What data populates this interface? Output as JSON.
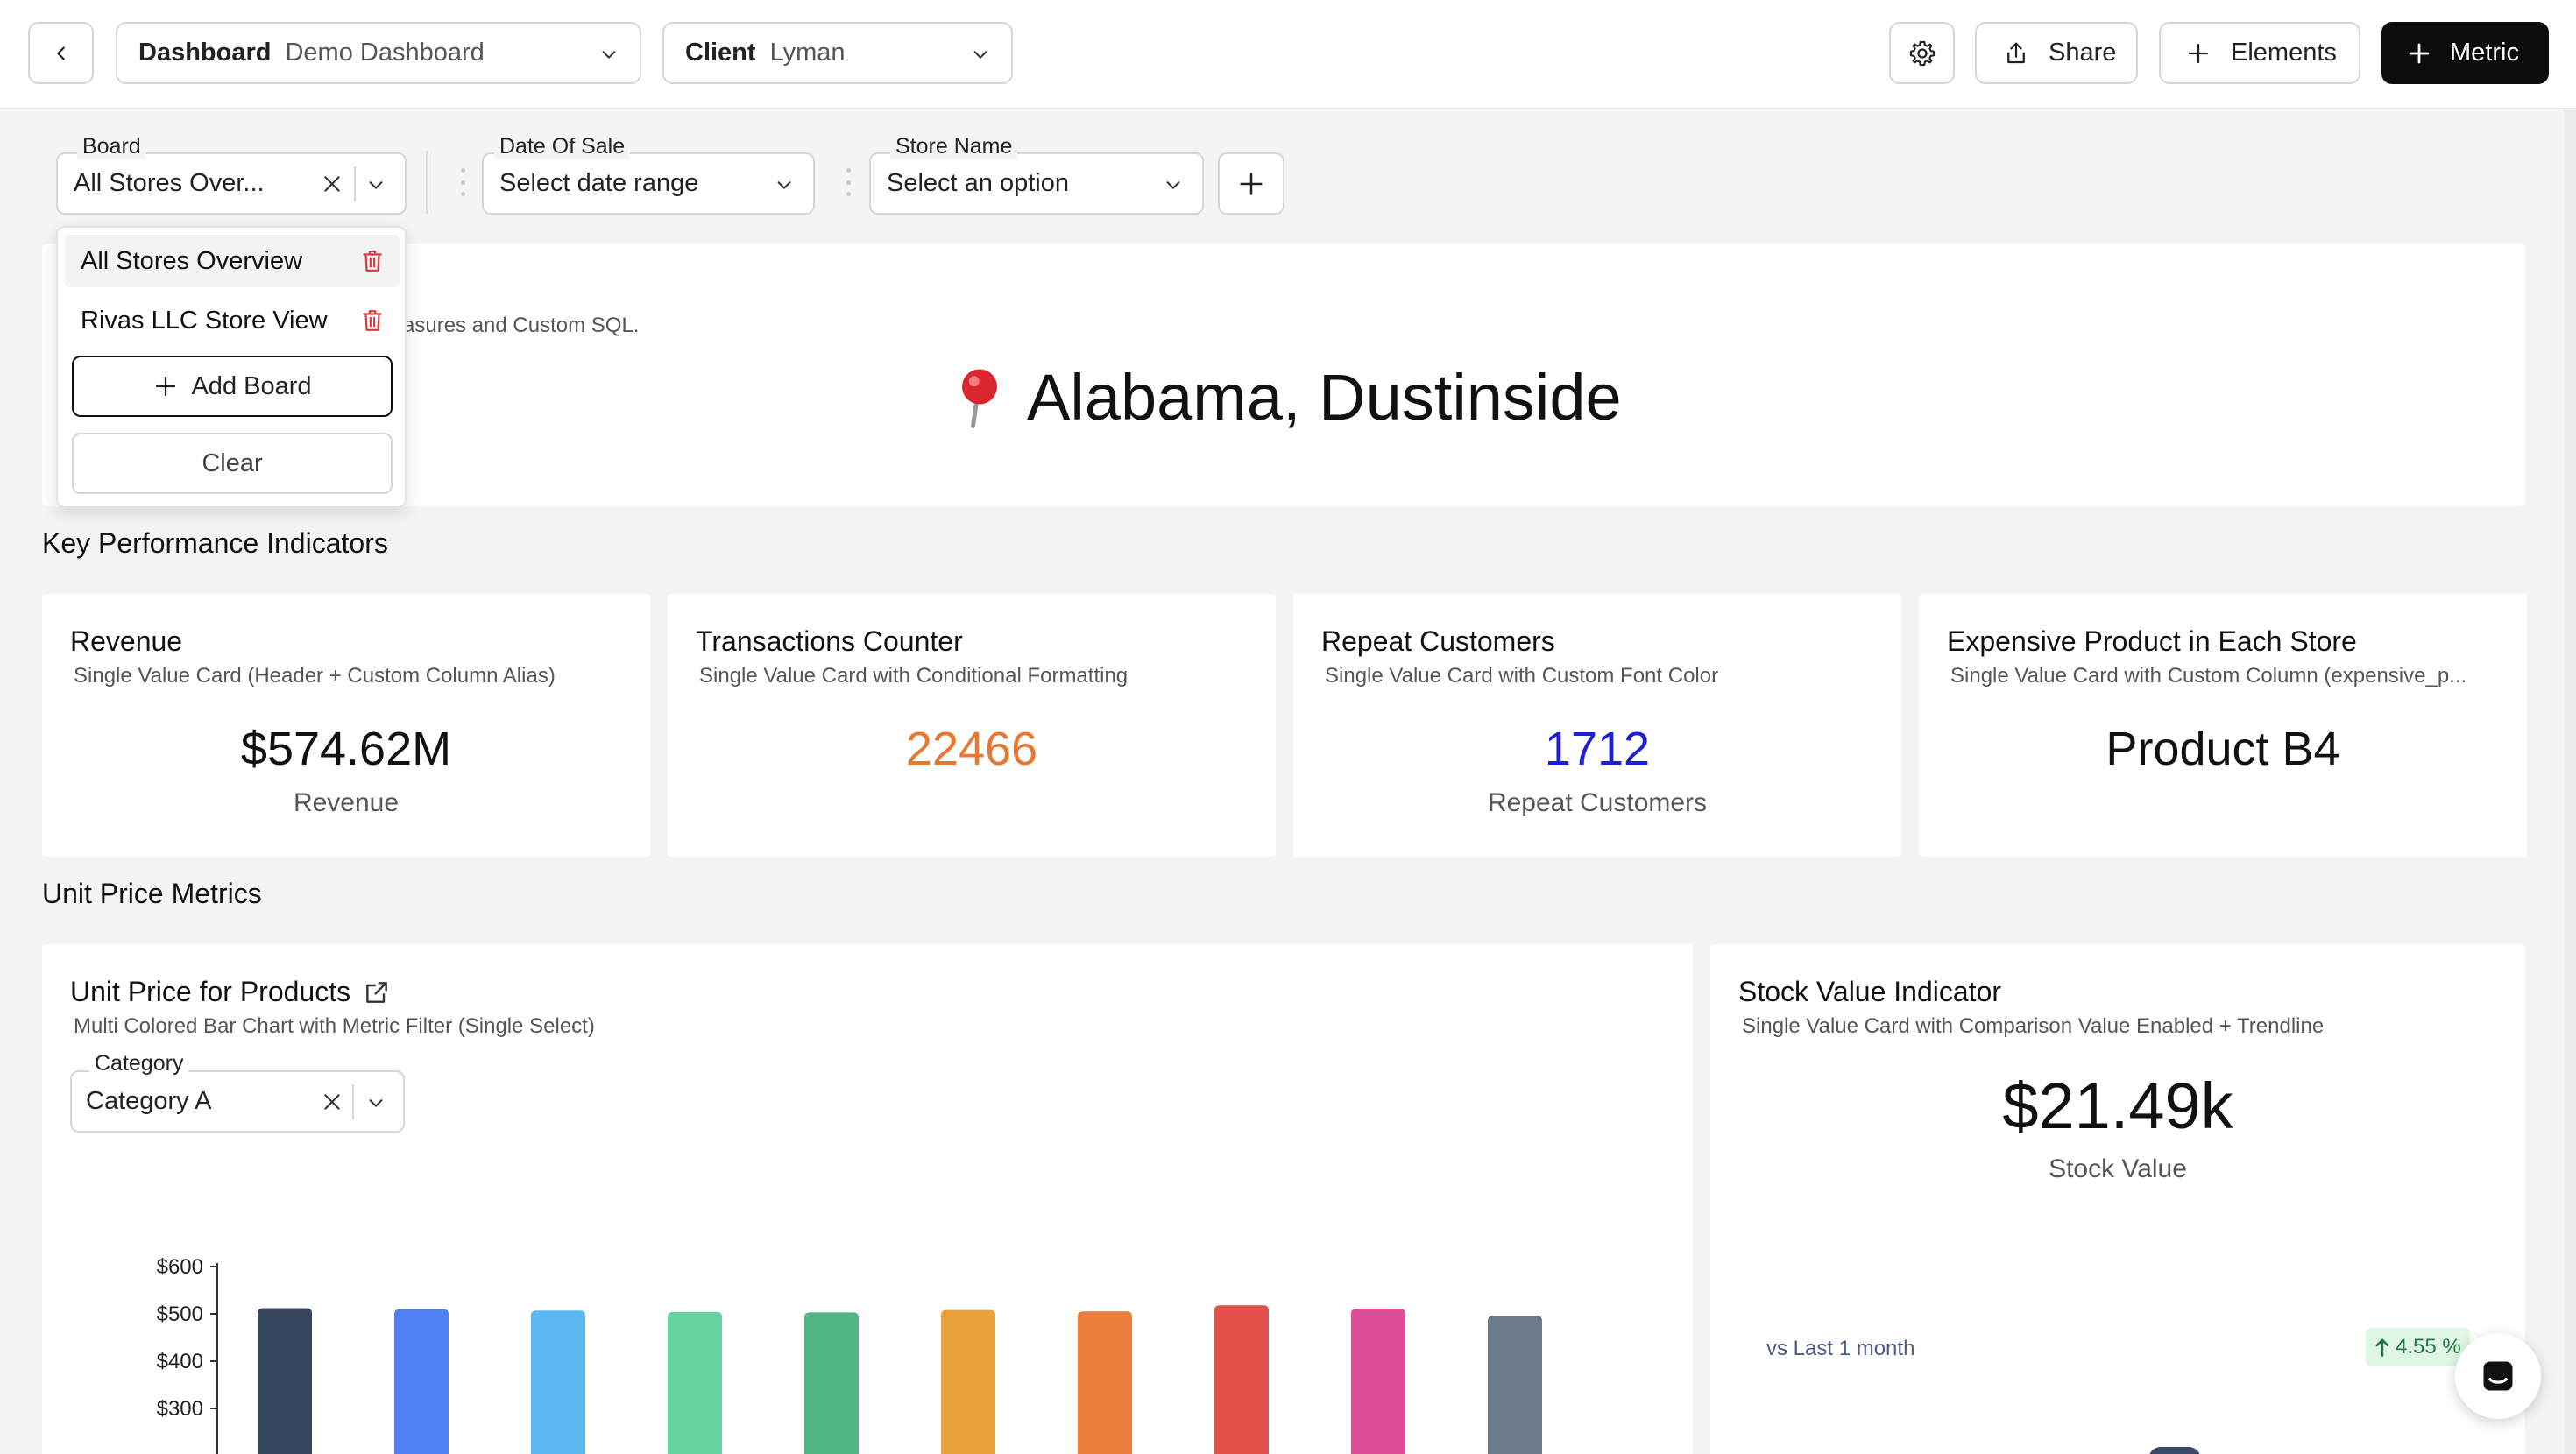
{
  "topbar": {
    "dashboard_key": "Dashboard",
    "dashboard_value": "Demo Dashboard",
    "client_key": "Client",
    "client_value": "Lyman",
    "share_label": "Share",
    "elements_label": "Elements",
    "metric_label": "Metric"
  },
  "filters": {
    "board_label": "Board",
    "board_value": "All Stores Over...",
    "date_label": "Date Of Sale",
    "date_placeholder": "Select date range",
    "store_label": "Store Name",
    "store_placeholder": "Select an option"
  },
  "board_dropdown": {
    "items": [
      "All Stores Overview",
      "Rivas LLC Store View"
    ],
    "add_label": "Add Board",
    "clear_label": "Clear"
  },
  "hero": {
    "subtitle_fragment": "asures and Custom SQL.",
    "location": "Alabama, Dustinside"
  },
  "sections": {
    "kpi_title": "Key Performance Indicators",
    "unit_price_title": "Unit Price Metrics"
  },
  "kpis": [
    {
      "title": "Revenue",
      "subtitle": "Single Value Card (Header + Custom Column Alias)",
      "value": "$574.62M",
      "label": "Revenue",
      "color": "#111111"
    },
    {
      "title": "Transactions Counter",
      "subtitle": "Single Value Card with Conditional Formatting",
      "value": "22466",
      "label": "",
      "color": "#e8782f"
    },
    {
      "title": "Repeat Customers",
      "subtitle": "Single Value Card with Custom Font Color",
      "value": "1712",
      "label": "Repeat Customers",
      "color": "#1f1fd8"
    },
    {
      "title": "Expensive Product in Each Store",
      "subtitle": "Single Value Card with Custom Column (expensive_p...",
      "value": "Product B4",
      "label": "",
      "color": "#111111"
    }
  ],
  "unit_price": {
    "title": "Unit Price for Products",
    "subtitle": "Multi Colored Bar Chart with Metric Filter (Single Select)",
    "category_label": "Category",
    "category_value": "Category A"
  },
  "chart_data": {
    "type": "bar",
    "title": "",
    "ytick_labels": [
      "$600",
      "$500",
      "$400",
      "$300"
    ],
    "ylim": [
      0,
      600
    ],
    "values": [
      512,
      510,
      507,
      504,
      503,
      508,
      505,
      518,
      511,
      496
    ],
    "colors": [
      "#34475f",
      "#4f7ff0",
      "#5db8f2",
      "#65d39e",
      "#52b586",
      "#e9a23b",
      "#ea7d38",
      "#e25149",
      "#de4f98",
      "#6c7a8b"
    ]
  },
  "stock": {
    "title": "Stock Value Indicator",
    "subtitle": "Single Value Card with Comparison Value Enabled + Trendline",
    "value": "$21.49k",
    "label": "Stock Value",
    "comparison": "vs Last 1 month",
    "change": "4.55 %"
  }
}
